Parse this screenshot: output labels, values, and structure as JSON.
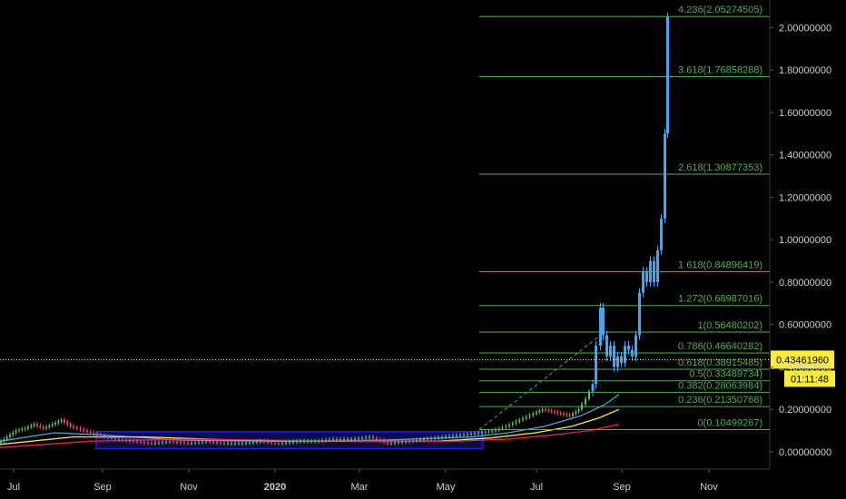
{
  "chart_data": {
    "type": "candlestick",
    "x_labels": [
      "Jul",
      "Sep",
      "Nov",
      "2020",
      "Mar",
      "May",
      "Jul",
      "Sep",
      "Nov"
    ],
    "x_label_bold": "2020",
    "y_ticks": [
      "2.00000000",
      "1.80000000",
      "1.60000000",
      "1.40000000",
      "1.20000000",
      "1.00000000",
      "0.80000000",
      "0.60000000",
      "0.40000000",
      "0.20000000",
      "0.00000000"
    ],
    "y_tick_values": [
      2.0,
      1.8,
      1.6,
      1.4,
      1.2,
      1.0,
      0.8,
      0.6,
      0.4,
      0.2,
      0.0
    ],
    "ylim": [
      -0.05,
      2.1
    ],
    "current_price": "0.43461960",
    "current_price_value": 0.4346196,
    "countdown": "01:11:48",
    "fib_levels": [
      {
        "label": "4.236(2.05274505)",
        "value": 2.05274505
      },
      {
        "label": "3.618(1.76858288)",
        "value": 1.76858288
      },
      {
        "label": "2.618(1.30877353)",
        "value": 1.30877353
      },
      {
        "label": "1.618(0.84896419)",
        "value": 0.84896419
      },
      {
        "label": "1.272(0.68987016)",
        "value": 0.68987016
      },
      {
        "label": "1(0.56480202)",
        "value": 0.56480202
      },
      {
        "label": "0.786(0.46640282)",
        "value": 0.46640282
      },
      {
        "label": "0.618(0.38915485)",
        "value": 0.38915485
      },
      {
        "label": "0.5(0.33489734)",
        "value": 0.33489734
      },
      {
        "label": "0.382(0.28063984)",
        "value": 0.28063984
      },
      {
        "label": "0.236(0.21350768)",
        "value": 0.21350768
      },
      {
        "label": "0(0.10499267)",
        "value": 0.10499267
      }
    ],
    "price_path": [
      [
        0,
        0.04
      ],
      [
        10,
        0.07
      ],
      [
        20,
        0.1
      ],
      [
        30,
        0.11
      ],
      [
        40,
        0.13
      ],
      [
        50,
        0.11
      ],
      [
        60,
        0.13
      ],
      [
        70,
        0.15
      ],
      [
        80,
        0.12
      ],
      [
        95,
        0.1
      ],
      [
        110,
        0.08
      ],
      [
        130,
        0.06
      ],
      [
        150,
        0.05
      ],
      [
        170,
        0.04
      ],
      [
        190,
        0.05
      ],
      [
        210,
        0.04
      ],
      [
        230,
        0.05
      ],
      [
        250,
        0.04
      ],
      [
        270,
        0.04
      ],
      [
        290,
        0.05
      ],
      [
        310,
        0.04
      ],
      [
        330,
        0.05
      ],
      [
        350,
        0.05
      ],
      [
        370,
        0.06
      ],
      [
        390,
        0.06
      ],
      [
        410,
        0.07
      ],
      [
        430,
        0.04
      ],
      [
        450,
        0.05
      ],
      [
        470,
        0.06
      ],
      [
        490,
        0.07
      ],
      [
        510,
        0.08
      ],
      [
        530,
        0.09
      ],
      [
        545,
        0.1
      ],
      [
        560,
        0.12
      ],
      [
        575,
        0.15
      ],
      [
        590,
        0.18
      ],
      [
        600,
        0.2
      ],
      [
        610,
        0.19
      ],
      [
        620,
        0.18
      ],
      [
        630,
        0.17
      ],
      [
        640,
        0.2
      ],
      [
        648,
        0.25
      ],
      [
        655,
        0.32
      ],
      [
        660,
        0.5
      ],
      [
        663,
        0.68
      ],
      [
        667,
        0.55
      ],
      [
        671,
        0.45
      ],
      [
        675,
        0.5
      ],
      [
        679,
        0.4
      ],
      [
        683,
        0.45
      ],
      [
        687,
        0.42
      ],
      [
        691,
        0.5
      ],
      [
        695,
        0.48
      ],
      [
        699,
        0.45
      ],
      [
        703,
        0.55
      ],
      [
        707,
        0.75
      ],
      [
        711,
        0.85
      ],
      [
        715,
        0.8
      ],
      [
        719,
        0.9
      ],
      [
        723,
        0.8
      ],
      [
        727,
        0.95
      ],
      [
        731,
        1.1
      ],
      [
        734,
        1.5
      ],
      [
        736,
        2.05
      ]
    ],
    "ema_series": [
      {
        "color": "#4fa3e0",
        "points": [
          [
            0,
            0.05
          ],
          [
            60,
            0.09
          ],
          [
            110,
            0.08
          ],
          [
            200,
            0.055
          ],
          [
            300,
            0.05
          ],
          [
            420,
            0.055
          ],
          [
            520,
            0.07
          ],
          [
            560,
            0.09
          ],
          [
            600,
            0.12
          ],
          [
            640,
            0.17
          ],
          [
            665,
            0.22
          ],
          [
            682,
            0.27
          ]
        ]
      },
      {
        "color": "#ffeb3b",
        "points": [
          [
            0,
            0.035
          ],
          [
            80,
            0.07
          ],
          [
            160,
            0.07
          ],
          [
            260,
            0.055
          ],
          [
            380,
            0.05
          ],
          [
            480,
            0.05
          ],
          [
            540,
            0.065
          ],
          [
            590,
            0.09
          ],
          [
            630,
            0.12
          ],
          [
            660,
            0.16
          ],
          [
            682,
            0.2
          ]
        ]
      },
      {
        "color": "#e91e63",
        "points": [
          [
            0,
            0.02
          ],
          [
            100,
            0.05
          ],
          [
            200,
            0.06
          ],
          [
            300,
            0.055
          ],
          [
            400,
            0.05
          ],
          [
            500,
            0.05
          ],
          [
            560,
            0.06
          ],
          [
            610,
            0.08
          ],
          [
            650,
            0.1
          ],
          [
            682,
            0.13
          ]
        ]
      }
    ],
    "accumulation_box": {
      "low": 0.015,
      "high": 0.095
    },
    "projection_start": [
      528,
      0.10499267
    ],
    "projection_end": [
      666,
      0.56480202
    ],
    "colors": {
      "fib": "#4caf50",
      "candle": "#42a5f5",
      "price_tag": "#ffeb3b",
      "box": "#1e22d6"
    }
  }
}
